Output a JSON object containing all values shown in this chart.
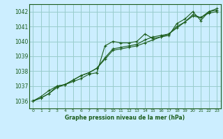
{
  "background_color": "#cceeff",
  "grid_color": "#99cccc",
  "line_color": "#1a5c1a",
  "xlabel": "Graphe pression niveau de la mer (hPa)",
  "ylim": [
    1035.5,
    1042.5
  ],
  "xlim": [
    -0.5,
    23.5
  ],
  "yticks": [
    1036,
    1037,
    1038,
    1039,
    1040,
    1041,
    1042
  ],
  "xticks": [
    0,
    1,
    2,
    3,
    4,
    5,
    6,
    7,
    8,
    9,
    10,
    11,
    12,
    13,
    14,
    15,
    16,
    17,
    18,
    19,
    20,
    21,
    22,
    23
  ],
  "series": [
    [
      1036.0,
      1036.3,
      1036.7,
      1037.0,
      1037.1,
      1037.3,
      1037.5,
      1037.8,
      1037.9,
      1039.7,
      1040.0,
      1039.9,
      1039.9,
      1040.0,
      1040.5,
      1040.2,
      1040.3,
      1040.4,
      1041.2,
      1041.5,
      1042.0,
      1041.4,
      1042.0,
      1042.2
    ],
    [
      1036.0,
      1036.2,
      1036.5,
      1037.0,
      1037.1,
      1037.4,
      1037.7,
      1037.9,
      1038.2,
      1038.9,
      1039.5,
      1039.6,
      1039.7,
      1039.8,
      1040.1,
      1040.3,
      1040.4,
      1040.5,
      1041.0,
      1041.3,
      1041.8,
      1041.6,
      1042.0,
      1042.1
    ],
    [
      1036.0,
      1036.2,
      1036.5,
      1036.9,
      1037.1,
      1037.4,
      1037.7,
      1037.9,
      1038.2,
      1038.8,
      1039.4,
      1039.5,
      1039.6,
      1039.7,
      1039.9,
      1040.1,
      1040.3,
      1040.5,
      1040.9,
      1041.3,
      1041.7,
      1041.6,
      1041.9,
      1042.0
    ]
  ],
  "figsize": [
    3.2,
    2.0
  ],
  "dpi": 100
}
